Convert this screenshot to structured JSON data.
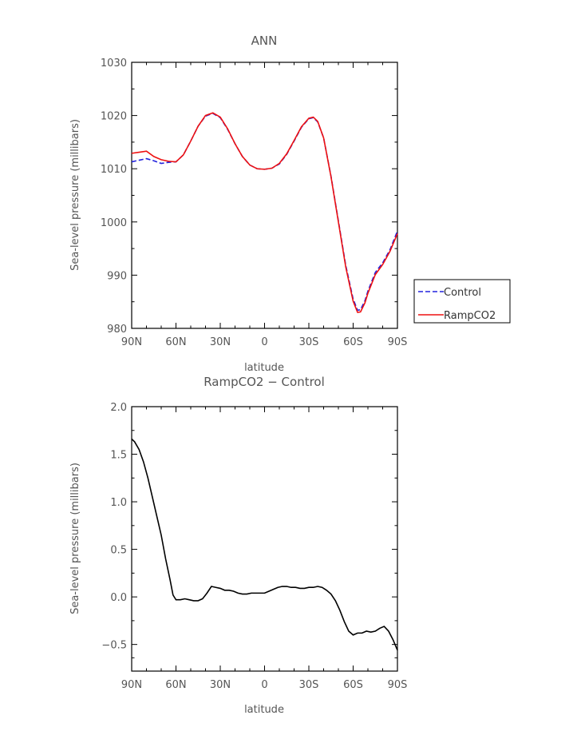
{
  "chart_data": [
    {
      "type": "line",
      "title": "ANN",
      "xlabel": "latitude",
      "ylabel": "Sea-level pressure (millibars)",
      "xlim": [
        90,
        -90
      ],
      "ylim": [
        980,
        1030
      ],
      "x_ticks": [
        90,
        60,
        30,
        0,
        -30,
        -60,
        -90
      ],
      "x_tick_labels": [
        "90N",
        "60N",
        "30N",
        "0",
        "30S",
        "60S",
        "90S"
      ],
      "y_ticks": [
        980,
        990,
        1000,
        1010,
        1020,
        1030
      ],
      "y_tick_labels": [
        "980",
        "990",
        "1000",
        "1010",
        "1020",
        "1030"
      ],
      "legend": {
        "placement": "right",
        "entries": [
          "Control",
          "RampCO2"
        ]
      },
      "series": [
        {
          "name": "Control",
          "color": "#2222dd",
          "dash": true,
          "x": [
            90,
            85,
            80,
            75,
            70,
            65,
            60,
            55,
            50,
            45,
            40,
            35,
            30,
            25,
            20,
            15,
            10,
            5,
            0,
            -5,
            -10,
            -15,
            -20,
            -25,
            -30,
            -33,
            -36,
            -40,
            -45,
            -50,
            -55,
            -60,
            -63,
            -65,
            -68,
            -70,
            -75,
            -80,
            -85,
            -90
          ],
          "y": [
            1011.3,
            1011.6,
            1011.9,
            1011.5,
            1011.0,
            1011.2,
            1011.3,
            1012.6,
            1015.2,
            1018.0,
            1019.9,
            1020.4,
            1019.6,
            1017.4,
            1014.7,
            1012.3,
            1010.7,
            1010.0,
            1009.9,
            1010.1,
            1010.9,
            1012.7,
            1015.2,
            1017.8,
            1019.4,
            1019.6,
            1018.8,
            1015.8,
            1008.6,
            1000.2,
            991.8,
            985.5,
            983.4,
            983.5,
            985.2,
            987.0,
            990.5,
            992.3,
            994.8,
            998.3
          ]
        },
        {
          "name": "RampCO2",
          "color": "#ee1111",
          "dash": false,
          "x": [
            90,
            85,
            80,
            75,
            70,
            65,
            60,
            55,
            50,
            45,
            40,
            35,
            30,
            25,
            20,
            15,
            10,
            5,
            0,
            -5,
            -10,
            -15,
            -20,
            -25,
            -30,
            -33,
            -36,
            -40,
            -45,
            -50,
            -55,
            -60,
            -63,
            -65,
            -68,
            -70,
            -75,
            -80,
            -85,
            -90
          ],
          "y": [
            1012.9,
            1013.1,
            1013.3,
            1012.3,
            1011.7,
            1011.4,
            1011.3,
            1012.6,
            1015.2,
            1018.0,
            1020.0,
            1020.5,
            1019.7,
            1017.5,
            1014.7,
            1012.3,
            1010.7,
            1010.0,
            1009.9,
            1010.1,
            1011.0,
            1012.8,
            1015.3,
            1017.9,
            1019.5,
            1019.7,
            1018.9,
            1015.8,
            1008.5,
            1000.0,
            991.5,
            985.1,
            983.0,
            983.1,
            984.8,
            986.6,
            990.1,
            992.0,
            994.5,
            997.8
          ]
        }
      ]
    },
    {
      "type": "line",
      "title": "RampCO2 − Control",
      "xlabel": "latitude",
      "ylabel": "Sea-level pressure (millibars)",
      "xlim": [
        90,
        -90
      ],
      "ylim": [
        -0.78,
        2.0
      ],
      "x_ticks": [
        90,
        60,
        30,
        0,
        -30,
        -60,
        -90
      ],
      "x_tick_labels": [
        "90N",
        "60N",
        "30N",
        "0",
        "30S",
        "60S",
        "90S"
      ],
      "y_ticks": [
        -0.5,
        0.0,
        0.5,
        1.0,
        1.5,
        2.0
      ],
      "y_tick_labels": [
        "−0.5",
        "0.0",
        "0.5",
        "1.0",
        "1.5",
        "2.0"
      ],
      "series": [
        {
          "color": "#000000",
          "dash": false,
          "x": [
            90,
            88,
            85,
            82,
            79,
            76,
            73,
            70,
            67,
            64,
            62,
            60,
            57,
            54,
            51,
            48,
            45,
            42,
            39,
            36,
            33,
            30,
            27,
            24,
            21,
            18,
            15,
            12,
            9,
            6,
            3,
            0,
            -3,
            -6,
            -9,
            -12,
            -15,
            -18,
            -21,
            -24,
            -27,
            -30,
            -33,
            -36,
            -39,
            -42,
            -45,
            -48,
            -51,
            -54,
            -57,
            -60,
            -63,
            -66,
            -69,
            -72,
            -75,
            -78,
            -81,
            -84,
            -87,
            -90
          ],
          "y": [
            1.66,
            1.63,
            1.55,
            1.42,
            1.25,
            1.05,
            0.85,
            0.65,
            0.4,
            0.18,
            0.02,
            -0.03,
            -0.03,
            -0.02,
            -0.03,
            -0.04,
            -0.04,
            -0.02,
            0.04,
            0.11,
            0.1,
            0.09,
            0.07,
            0.07,
            0.06,
            0.04,
            0.03,
            0.03,
            0.04,
            0.04,
            0.04,
            0.04,
            0.06,
            0.08,
            0.1,
            0.11,
            0.11,
            0.1,
            0.1,
            0.09,
            0.09,
            0.1,
            0.1,
            0.11,
            0.1,
            0.07,
            0.03,
            -0.04,
            -0.14,
            -0.26,
            -0.36,
            -0.4,
            -0.38,
            -0.38,
            -0.36,
            -0.37,
            -0.36,
            -0.33,
            -0.31,
            -0.36,
            -0.45,
            -0.56
          ]
        }
      ]
    }
  ]
}
